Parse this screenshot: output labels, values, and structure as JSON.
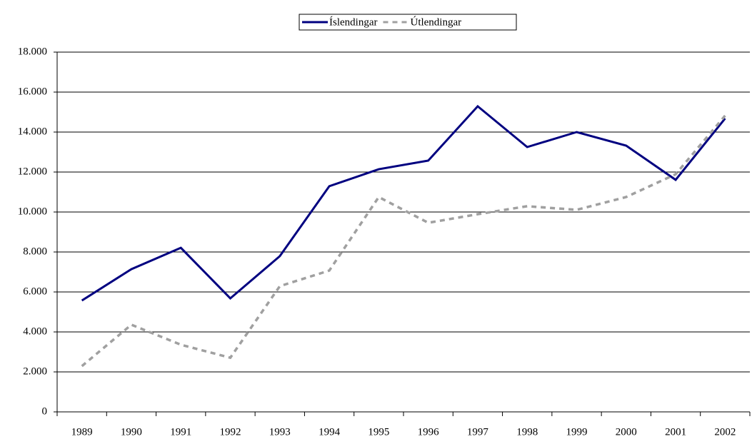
{
  "chart_data": {
    "type": "line",
    "categories": [
      "1989",
      "1990",
      "1991",
      "1992",
      "1993",
      "1994",
      "1995",
      "1996",
      "1997",
      "1998",
      "1999",
      "2000",
      "2001",
      "2002"
    ],
    "series": [
      {
        "name": "Íslendingar",
        "color": "#000080",
        "dash": false,
        "values": [
          5570,
          7140,
          8210,
          5680,
          7790,
          11290,
          12140,
          12570,
          15290,
          13250,
          14000,
          13320,
          11610,
          14680
        ]
      },
      {
        "name": "Útlendingar",
        "color": "#a0a0a0",
        "dash": true,
        "values": [
          2290,
          4360,
          3360,
          2710,
          6290,
          7070,
          10750,
          9460,
          9890,
          10290,
          10110,
          10750,
          11890,
          14820
        ]
      }
    ],
    "ylim": [
      0,
      18000
    ],
    "yticks": [
      0,
      {
        "value": 2000,
        "label": "2.000"
      },
      {
        "value": 4000,
        "label": "4.000"
      },
      {
        "value": 6000,
        "label": "6.000"
      },
      {
        "value": 8000,
        "label": "8.000"
      },
      {
        "value": 10000,
        "label": "10.000"
      },
      {
        "value": 12000,
        "label": "12.000"
      },
      {
        "value": 14000,
        "label": "14.000"
      },
      {
        "value": 16000,
        "label": "16.000"
      },
      {
        "value": 18000,
        "label": "18.000"
      }
    ],
    "grid": true,
    "legend": "top"
  }
}
